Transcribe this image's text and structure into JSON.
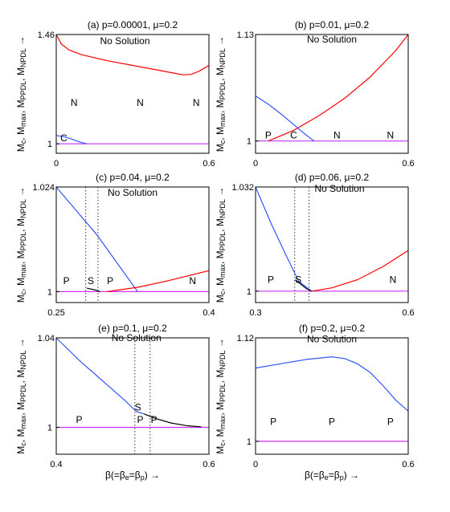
{
  "figure": {
    "ylabel_parts": [
      "M",
      "c",
      ", M",
      "max",
      ", M",
      "PPDL",
      ", M",
      "NPDL",
      " →"
    ],
    "xlabel_parts": [
      "β(=β",
      "e",
      "=β",
      "p",
      ") →"
    ]
  },
  "colors": {
    "red": "#ff0000",
    "blue": "#3355ff",
    "black": "#000000",
    "magenta": "#cc33ff"
  },
  "chart_data": [
    {
      "type": "line",
      "title": "(a) p=0.00001, μ=0.2",
      "xlim": [
        0,
        0.6
      ],
      "ylim": [
        0.96,
        1.46
      ],
      "xticks": [
        "0",
        "0.6"
      ],
      "yticks": [
        "1",
        "1.46"
      ],
      "series": [
        {
          "color": "magenta",
          "x": [
            0,
            0.6
          ],
          "y": [
            1.0,
            1.0
          ]
        },
        {
          "color": "red",
          "x": [
            0,
            0.02,
            0.05,
            0.1,
            0.2,
            0.3,
            0.4,
            0.45,
            0.5,
            0.53,
            0.56,
            0.6
          ],
          "y": [
            1.46,
            1.42,
            1.395,
            1.375,
            1.35,
            1.33,
            1.31,
            1.3,
            1.29,
            1.292,
            1.305,
            1.33
          ]
        },
        {
          "color": "blue",
          "x": [
            0,
            0.03,
            0.06,
            0.09,
            0.12
          ],
          "y": [
            1.035,
            1.03,
            1.02,
            1.008,
            1.0
          ]
        }
      ],
      "annotations": [
        {
          "text": "No Solution",
          "x": 0.27,
          "y": 1.42
        },
        {
          "text": "N",
          "x": 0.07,
          "y": 1.16
        },
        {
          "text": "N",
          "x": 0.33,
          "y": 1.16
        },
        {
          "text": "N",
          "x": 0.55,
          "y": 1.16
        },
        {
          "text": "C",
          "x": 0.03,
          "y": 1.01
        }
      ],
      "vlines": []
    },
    {
      "type": "line",
      "title": "(b) p=0.01, μ=0.2",
      "xlim": [
        0,
        0.6
      ],
      "ylim": [
        0.985,
        1.13
      ],
      "xticks": [
        "0",
        "0.6"
      ],
      "yticks": [
        "1",
        "1.13"
      ],
      "series": [
        {
          "color": "magenta",
          "x": [
            0,
            0.6
          ],
          "y": [
            1.0,
            1.0
          ]
        },
        {
          "color": "red",
          "x": [
            0.05,
            0.15,
            0.25,
            0.35,
            0.45,
            0.55,
            0.6
          ],
          "y": [
            1.0,
            1.013,
            1.031,
            1.052,
            1.078,
            1.11,
            1.13
          ]
        },
        {
          "color": "blue",
          "x": [
            0,
            0.05,
            0.1,
            0.15,
            0.2,
            0.23
          ],
          "y": [
            1.055,
            1.045,
            1.033,
            1.02,
            1.007,
            1.0
          ]
        }
      ],
      "annotations": [
        {
          "text": "No Solution",
          "x": 0.3,
          "y": 1.12
        },
        {
          "text": "P",
          "x": 0.05,
          "y": 1.003
        },
        {
          "text": "C",
          "x": 0.15,
          "y": 1.003
        },
        {
          "text": "N",
          "x": 0.32,
          "y": 1.003
        },
        {
          "text": "N",
          "x": 0.53,
          "y": 1.003
        }
      ],
      "vlines": []
    },
    {
      "type": "line",
      "title": "(c) p=0.04, μ=0.2",
      "xlim": [
        0.25,
        0.4
      ],
      "ylim": [
        0.9975,
        1.024
      ],
      "xticks": [
        "0.25",
        "0.4"
      ],
      "yticks": [
        "1",
        "1.024"
      ],
      "series": [
        {
          "color": "magenta",
          "x": [
            0.25,
            0.4
          ],
          "y": [
            1.0,
            1.0
          ]
        },
        {
          "color": "blue",
          "x": [
            0.25,
            0.27,
            0.29,
            0.31,
            0.33
          ],
          "y": [
            1.024,
            1.0185,
            1.013,
            1.0065,
            1.0
          ]
        },
        {
          "color": "red",
          "x": [
            0.3,
            0.33,
            0.36,
            0.4
          ],
          "y": [
            1.0,
            1.001,
            1.0025,
            1.0048
          ]
        },
        {
          "color": "black",
          "x": [
            0.28,
            0.288,
            0.293
          ],
          "y": [
            1.0008,
            1.0004,
            1.0
          ]
        }
      ],
      "annotations": [
        {
          "text": "No Solution",
          "x": 0.325,
          "y": 1.022
        },
        {
          "text": "P",
          "x": 0.26,
          "y": 1.0017
        },
        {
          "text": "S",
          "x": 0.284,
          "y": 1.0017
        },
        {
          "text": "P",
          "x": 0.303,
          "y": 1.0017
        },
        {
          "text": "N",
          "x": 0.384,
          "y": 1.0017
        }
      ],
      "vlines": [
        0.279,
        0.291
      ]
    },
    {
      "type": "line",
      "title": "(d) p=0.06, μ=0.2",
      "xlim": [
        0.3,
        0.6
      ],
      "ylim": [
        0.9965,
        1.032
      ],
      "xticks": [
        "0.3",
        "0.6"
      ],
      "yticks": [
        "1",
        "1.032"
      ],
      "series": [
        {
          "color": "magenta",
          "x": [
            0.3,
            0.6
          ],
          "y": [
            1.0,
            1.0
          ]
        },
        {
          "color": "blue",
          "x": [
            0.3,
            0.33,
            0.36,
            0.385,
            0.41
          ],
          "y": [
            1.032,
            1.021,
            1.011,
            1.003,
            1.0
          ]
        },
        {
          "color": "red",
          "x": [
            0.41,
            0.45,
            0.5,
            0.55,
            0.6
          ],
          "y": [
            1.0,
            1.001,
            1.0035,
            1.0075,
            1.0125
          ]
        },
        {
          "color": "black",
          "x": [
            0.378,
            0.39,
            0.4,
            0.41
          ],
          "y": [
            1.0035,
            1.002,
            1.0008,
            1.0
          ]
        }
      ],
      "annotations": [
        {
          "text": "No Solution",
          "x": 0.465,
          "y": 1.0305
        },
        {
          "text": "P",
          "x": 0.33,
          "y": 1.0025
        },
        {
          "text": "S",
          "x": 0.384,
          "y": 1.0025
        },
        {
          "text": "N",
          "x": 0.57,
          "y": 1.0025
        }
      ],
      "vlines": [
        0.377,
        0.405
      ]
    },
    {
      "type": "line",
      "title": "(e) p=0.1, μ=0.2",
      "xlim": [
        0.4,
        0.6
      ],
      "ylim": [
        0.988,
        1.04
      ],
      "xticks": [
        "0.4",
        "0.6"
      ],
      "yticks": [
        "1",
        "1.04"
      ],
      "series": [
        {
          "color": "magenta",
          "x": [
            0.4,
            0.6
          ],
          "y": [
            1.0,
            1.0
          ]
        },
        {
          "color": "blue",
          "x": [
            0.4,
            0.43,
            0.46,
            0.49,
            0.505,
            0.515
          ],
          "y": [
            1.04,
            1.03,
            1.021,
            1.012,
            1.007,
            1.006
          ]
        },
        {
          "color": "black",
          "x": [
            0.515,
            0.53,
            0.55,
            0.57,
            0.59
          ],
          "y": [
            1.006,
            1.004,
            1.002,
            1.0008,
            1.0002
          ]
        }
      ],
      "annotations": [
        {
          "text": "No Solution",
          "x": 0.505,
          "y": 1.0385
        },
        {
          "text": "P",
          "x": 0.43,
          "y": 1.002
        },
        {
          "text": "S",
          "x": 0.507,
          "y": 1.0075
        },
        {
          "text": "P",
          "x": 0.51,
          "y": 1.002
        },
        {
          "text": "P",
          "x": 0.528,
          "y": 1.002
        }
      ],
      "vlines": [
        0.503,
        0.523
      ]
    },
    {
      "type": "line",
      "title": "(f) p=0.2, μ=0.2",
      "xlim": [
        0,
        0.6
      ],
      "ylim": [
        0.985,
        1.12
      ],
      "xticks": [
        "0",
        "0.6"
      ],
      "yticks": [
        "1",
        "1.12"
      ],
      "series": [
        {
          "color": "magenta",
          "x": [
            0,
            0.6
          ],
          "y": [
            1.0,
            1.0
          ]
        },
        {
          "color": "blue",
          "x": [
            0,
            0.1,
            0.2,
            0.3,
            0.35,
            0.4,
            0.45,
            0.5,
            0.55,
            0.6
          ],
          "y": [
            1.085,
            1.09,
            1.095,
            1.098,
            1.096,
            1.09,
            1.08,
            1.065,
            1.048,
            1.035
          ]
        }
      ],
      "annotations": [
        {
          "text": "No Solution",
          "x": 0.3,
          "y": 1.115
        },
        {
          "text": "P",
          "x": 0.07,
          "y": 1.019
        },
        {
          "text": "P",
          "x": 0.3,
          "y": 1.019
        },
        {
          "text": "P",
          "x": 0.53,
          "y": 1.019
        }
      ],
      "vlines": []
    }
  ]
}
